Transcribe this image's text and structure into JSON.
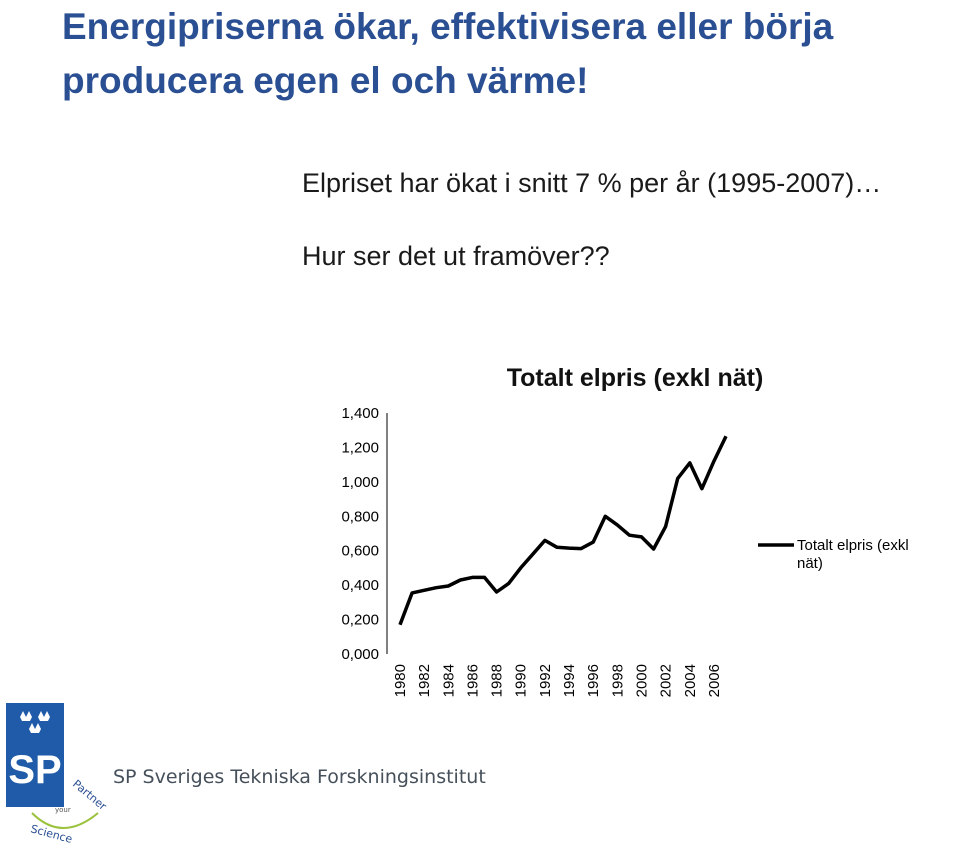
{
  "slide": {
    "title": "Energipriserna ökar, effektivisera eller börja producera egen el och värme!",
    "bullets": [
      "Elpriset har ökat i snitt 7 % per år (1995-2007)…",
      "Hur ser det ut framöver??"
    ]
  },
  "chart_data": {
    "type": "line",
    "title": "Totalt elpris (exkl nät)",
    "xlabel": "",
    "ylabel": "",
    "x": [
      1980,
      1981,
      1982,
      1983,
      1984,
      1985,
      1986,
      1987,
      1988,
      1989,
      1990,
      1991,
      1992,
      1993,
      1994,
      1995,
      1996,
      1997,
      1998,
      1999,
      2000,
      2001,
      2002,
      2003,
      2004,
      2005,
      2006,
      2007
    ],
    "xticks": [
      "1980",
      "1982",
      "1984",
      "1986",
      "1988",
      "1990",
      "1992",
      "1994",
      "1996",
      "1998",
      "2000",
      "2002",
      "2004",
      "2006"
    ],
    "yticks": [
      "0,000",
      "0,200",
      "0,400",
      "0,600",
      "0,800",
      "1,000",
      "1,200",
      "1,400"
    ],
    "ylim": [
      0,
      1.4
    ],
    "series": [
      {
        "name": "Totalt elpris (exkl nät)",
        "color": "#000000",
        "values": [
          0.17,
          0.355,
          0.37,
          0.385,
          0.395,
          0.43,
          0.445,
          0.445,
          0.36,
          0.41,
          0.5,
          0.58,
          0.66,
          0.62,
          0.615,
          0.612,
          0.65,
          0.8,
          0.75,
          0.69,
          0.68,
          0.61,
          0.74,
          1.02,
          1.11,
          0.96,
          1.12,
          1.265
        ]
      }
    ],
    "legend": "right",
    "grid": false
  },
  "footer": {
    "logo_text": "SP",
    "badge_text": "your Science Partner",
    "company": "SP Sveriges Tekniska Forskningsinstitut",
    "logo_color": "#1f5ba8"
  }
}
